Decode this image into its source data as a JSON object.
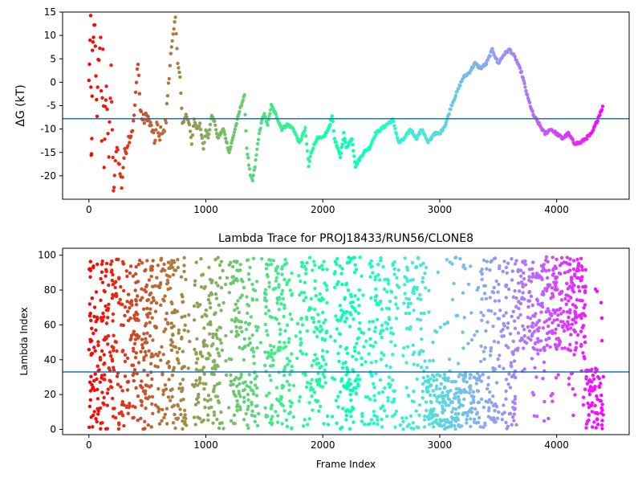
{
  "chart_data": [
    {
      "type": "scatter",
      "title": "",
      "xlabel": "",
      "ylabel": "ΔG (kT)",
      "xlim": [
        -225,
        4620
      ],
      "ylim": [
        -25,
        15
      ],
      "xticks": [
        0,
        1000,
        2000,
        3000,
        4000
      ],
      "yticks": [
        -20,
        -15,
        -10,
        -5,
        0,
        5,
        10,
        15
      ],
      "hline": -7.8,
      "hline_color": "#1f77b4",
      "colormap": "rainbow (reversed: red at frame 0, violet at last frame)",
      "n_frames": 4400,
      "series": [
        {
          "points": [
            [
              0,
              0
            ],
            [
              15,
              13
            ],
            [
              20,
              -16
            ],
            [
              25,
              -13
            ],
            [
              30,
              6
            ],
            [
              40,
              10
            ],
            [
              50,
              13
            ],
            [
              60,
              2
            ],
            [
              70,
              -8
            ],
            [
              80,
              4
            ],
            [
              100,
              9
            ],
            [
              110,
              -12
            ],
            [
              120,
              6
            ],
            [
              130,
              -18
            ],
            [
              140,
              -6
            ],
            [
              150,
              0
            ],
            [
              170,
              -16
            ],
            [
              190,
              3
            ],
            [
              200,
              -10
            ],
            [
              210,
              -24
            ],
            [
              220,
              -20
            ],
            [
              240,
              -13
            ],
            [
              260,
              -18
            ],
            [
              280,
              -22
            ],
            [
              300,
              -16
            ],
            [
              320,
              -14
            ],
            [
              340,
              -12
            ],
            [
              360,
              -11
            ],
            [
              380,
              -9
            ],
            [
              400,
              -3
            ],
            [
              420,
              5
            ],
            [
              440,
              -6
            ],
            [
              460,
              -8
            ],
            [
              480,
              -8
            ],
            [
              500,
              -7
            ],
            [
              520,
              -9
            ],
            [
              540,
              -10
            ],
            [
              560,
              -13
            ],
            [
              580,
              -9
            ],
            [
              600,
              -12
            ],
            [
              620,
              -10
            ],
            [
              640,
              -11
            ],
            [
              660,
              -8
            ],
            [
              680,
              0
            ],
            [
              700,
              6
            ],
            [
              720,
              10
            ],
            [
              740,
              14
            ],
            [
              760,
              4
            ],
            [
              780,
              1
            ],
            [
              800,
              -9
            ],
            [
              830,
              -7
            ],
            [
              860,
              -9
            ],
            [
              880,
              -13
            ],
            [
              900,
              -8
            ],
            [
              920,
              -10
            ],
            [
              950,
              -9
            ],
            [
              980,
              -14
            ],
            [
              1000,
              -10
            ],
            [
              1020,
              -12
            ],
            [
              1050,
              -7
            ],
            [
              1080,
              -9
            ],
            [
              1100,
              -12
            ],
            [
              1150,
              -10
            ],
            [
              1200,
              -15
            ],
            [
              1250,
              -10
            ],
            [
              1300,
              -5
            ],
            [
              1330,
              -3
            ],
            [
              1350,
              -14
            ],
            [
              1380,
              -20
            ],
            [
              1400,
              -21
            ],
            [
              1420,
              -18
            ],
            [
              1450,
              -12
            ],
            [
              1480,
              -8
            ],
            [
              1500,
              -7
            ],
            [
              1530,
              -9
            ],
            [
              1560,
              -5
            ],
            [
              1600,
              -7
            ],
            [
              1650,
              -10
            ],
            [
              1700,
              -9
            ],
            [
              1750,
              -10
            ],
            [
              1800,
              -13
            ],
            [
              1850,
              -10
            ],
            [
              1880,
              -18
            ],
            [
              1900,
              -15
            ],
            [
              1950,
              -12
            ],
            [
              2000,
              -12
            ],
            [
              2050,
              -10
            ],
            [
              2080,
              -7
            ],
            [
              2100,
              -12
            ],
            [
              2150,
              -16
            ],
            [
              2180,
              -11
            ],
            [
              2200,
              -14
            ],
            [
              2250,
              -12
            ],
            [
              2280,
              -18
            ],
            [
              2300,
              -17
            ],
            [
              2350,
              -15
            ],
            [
              2400,
              -14
            ],
            [
              2450,
              -11
            ],
            [
              2500,
              -10
            ],
            [
              2550,
              -9
            ],
            [
              2600,
              -8
            ],
            [
              2650,
              -13
            ],
            [
              2700,
              -12
            ],
            [
              2750,
              -10
            ],
            [
              2800,
              -12
            ],
            [
              2850,
              -10
            ],
            [
              2900,
              -13
            ],
            [
              2950,
              -11
            ],
            [
              3000,
              -11
            ],
            [
              3050,
              -9
            ],
            [
              3100,
              -5
            ],
            [
              3150,
              -2
            ],
            [
              3200,
              1
            ],
            [
              3250,
              2
            ],
            [
              3300,
              4
            ],
            [
              3350,
              3
            ],
            [
              3400,
              4
            ],
            [
              3450,
              7
            ],
            [
              3500,
              4
            ],
            [
              3550,
              6
            ],
            [
              3600,
              7
            ],
            [
              3650,
              5
            ],
            [
              3700,
              2
            ],
            [
              3750,
              -3
            ],
            [
              3800,
              -7
            ],
            [
              3850,
              -9
            ],
            [
              3900,
              -11
            ],
            [
              3950,
              -10
            ],
            [
              4000,
              -11
            ],
            [
              4050,
              -12
            ],
            [
              4100,
              -11
            ],
            [
              4150,
              -13
            ],
            [
              4200,
              -13
            ],
            [
              4250,
              -12
            ],
            [
              4300,
              -11
            ],
            [
              4350,
              -8
            ],
            [
              4380,
              -6
            ],
            [
              4400,
              -5
            ]
          ]
        }
      ]
    },
    {
      "type": "scatter",
      "title": "Lambda Trace for PROJ18433/RUN56/CLONE8",
      "xlabel": "Frame Index",
      "ylabel": "Lambda Index",
      "xlim": [
        -225,
        4620
      ],
      "ylim": [
        -3,
        104
      ],
      "xticks": [
        0,
        1000,
        2000,
        3000,
        4000
      ],
      "yticks": [
        0,
        20,
        40,
        60,
        80,
        100
      ],
      "hline": 33,
      "hline_color": "#1f77b4",
      "colormap": "rainbow (reversed: red at frame 0, violet at last frame)",
      "n_frames": 4400,
      "series": [
        {
          "summary": "Lambda index scattered across 0-99 over frames 0-4400; clustered near 0-30 around frames 2900-3300, near 45-99 around frames 3650-4200, and near 0-35 after frame 4250.",
          "sample_points": [
            [
              0,
              82
            ],
            [
              0,
              47
            ],
            [
              10,
              2
            ],
            [
              20,
              97
            ],
            [
              50,
              60
            ],
            [
              100,
              20
            ],
            [
              150,
              90
            ],
            [
              300,
              40
            ],
            [
              500,
              70
            ],
            [
              700,
              10
            ],
            [
              1000,
              55
            ],
            [
              1500,
              30
            ],
            [
              2000,
              85
            ],
            [
              2500,
              15
            ],
            [
              3000,
              10
            ],
            [
              3100,
              25
            ],
            [
              3500,
              5
            ],
            [
              3700,
              90
            ],
            [
              3900,
              70
            ],
            [
              4100,
              60
            ],
            [
              4300,
              20
            ],
            [
              4350,
              5
            ],
            [
              4400,
              30
            ]
          ]
        }
      ]
    }
  ]
}
